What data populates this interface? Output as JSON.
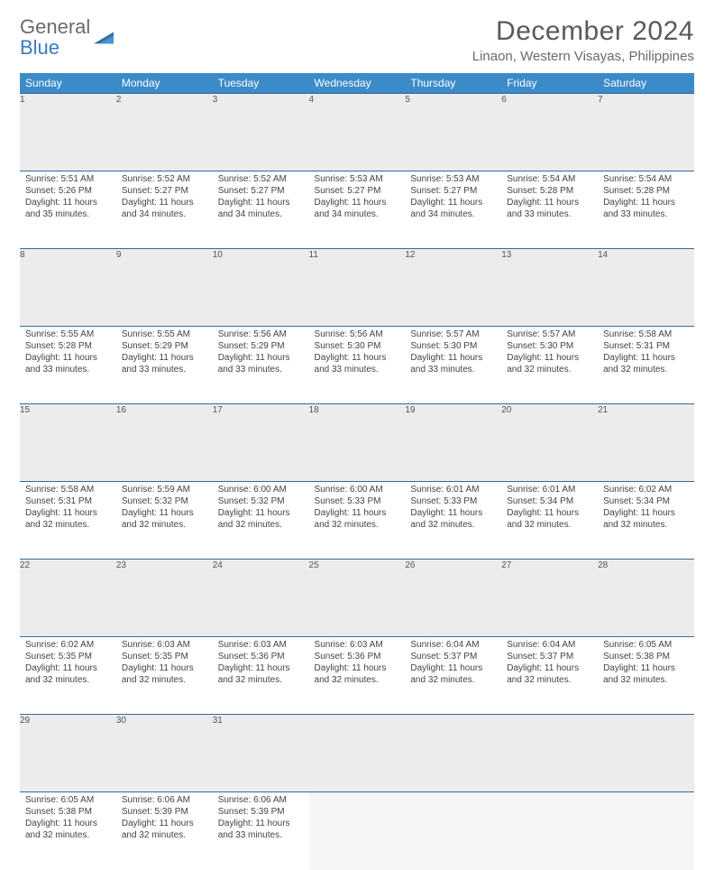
{
  "brand": {
    "line1": "General",
    "line2": "Blue"
  },
  "title": "December 2024",
  "location": "Linaon, Western Visayas, Philippines",
  "colors": {
    "header_bg": "#3b8bc9",
    "header_text": "#ffffff",
    "row_border": "#35689e",
    "daynum_bg": "#ececec",
    "body_text": "#444444",
    "title_text": "#5a5a5a",
    "brand_gray": "#6b6b6b",
    "brand_blue": "#3b7bbf"
  },
  "typography": {
    "title_fontsize": 30,
    "location_fontsize": 15,
    "dayhead_fontsize": 12,
    "cell_fontsize": 10
  },
  "day_headers": [
    "Sunday",
    "Monday",
    "Tuesday",
    "Wednesday",
    "Thursday",
    "Friday",
    "Saturday"
  ],
  "weeks": [
    [
      {
        "n": "1",
        "sr": "5:51 AM",
        "ss": "5:26 PM",
        "dl": "11 hours and 35 minutes."
      },
      {
        "n": "2",
        "sr": "5:52 AM",
        "ss": "5:27 PM",
        "dl": "11 hours and 34 minutes."
      },
      {
        "n": "3",
        "sr": "5:52 AM",
        "ss": "5:27 PM",
        "dl": "11 hours and 34 minutes."
      },
      {
        "n": "4",
        "sr": "5:53 AM",
        "ss": "5:27 PM",
        "dl": "11 hours and 34 minutes."
      },
      {
        "n": "5",
        "sr": "5:53 AM",
        "ss": "5:27 PM",
        "dl": "11 hours and 34 minutes."
      },
      {
        "n": "6",
        "sr": "5:54 AM",
        "ss": "5:28 PM",
        "dl": "11 hours and 33 minutes."
      },
      {
        "n": "7",
        "sr": "5:54 AM",
        "ss": "5:28 PM",
        "dl": "11 hours and 33 minutes."
      }
    ],
    [
      {
        "n": "8",
        "sr": "5:55 AM",
        "ss": "5:28 PM",
        "dl": "11 hours and 33 minutes."
      },
      {
        "n": "9",
        "sr": "5:55 AM",
        "ss": "5:29 PM",
        "dl": "11 hours and 33 minutes."
      },
      {
        "n": "10",
        "sr": "5:56 AM",
        "ss": "5:29 PM",
        "dl": "11 hours and 33 minutes."
      },
      {
        "n": "11",
        "sr": "5:56 AM",
        "ss": "5:30 PM",
        "dl": "11 hours and 33 minutes."
      },
      {
        "n": "12",
        "sr": "5:57 AM",
        "ss": "5:30 PM",
        "dl": "11 hours and 33 minutes."
      },
      {
        "n": "13",
        "sr": "5:57 AM",
        "ss": "5:30 PM",
        "dl": "11 hours and 32 minutes."
      },
      {
        "n": "14",
        "sr": "5:58 AM",
        "ss": "5:31 PM",
        "dl": "11 hours and 32 minutes."
      }
    ],
    [
      {
        "n": "15",
        "sr": "5:58 AM",
        "ss": "5:31 PM",
        "dl": "11 hours and 32 minutes."
      },
      {
        "n": "16",
        "sr": "5:59 AM",
        "ss": "5:32 PM",
        "dl": "11 hours and 32 minutes."
      },
      {
        "n": "17",
        "sr": "6:00 AM",
        "ss": "5:32 PM",
        "dl": "11 hours and 32 minutes."
      },
      {
        "n": "18",
        "sr": "6:00 AM",
        "ss": "5:33 PM",
        "dl": "11 hours and 32 minutes."
      },
      {
        "n": "19",
        "sr": "6:01 AM",
        "ss": "5:33 PM",
        "dl": "11 hours and 32 minutes."
      },
      {
        "n": "20",
        "sr": "6:01 AM",
        "ss": "5:34 PM",
        "dl": "11 hours and 32 minutes."
      },
      {
        "n": "21",
        "sr": "6:02 AM",
        "ss": "5:34 PM",
        "dl": "11 hours and 32 minutes."
      }
    ],
    [
      {
        "n": "22",
        "sr": "6:02 AM",
        "ss": "5:35 PM",
        "dl": "11 hours and 32 minutes."
      },
      {
        "n": "23",
        "sr": "6:03 AM",
        "ss": "5:35 PM",
        "dl": "11 hours and 32 minutes."
      },
      {
        "n": "24",
        "sr": "6:03 AM",
        "ss": "5:36 PM",
        "dl": "11 hours and 32 minutes."
      },
      {
        "n": "25",
        "sr": "6:03 AM",
        "ss": "5:36 PM",
        "dl": "11 hours and 32 minutes."
      },
      {
        "n": "26",
        "sr": "6:04 AM",
        "ss": "5:37 PM",
        "dl": "11 hours and 32 minutes."
      },
      {
        "n": "27",
        "sr": "6:04 AM",
        "ss": "5:37 PM",
        "dl": "11 hours and 32 minutes."
      },
      {
        "n": "28",
        "sr": "6:05 AM",
        "ss": "5:38 PM",
        "dl": "11 hours and 32 minutes."
      }
    ],
    [
      {
        "n": "29",
        "sr": "6:05 AM",
        "ss": "5:38 PM",
        "dl": "11 hours and 32 minutes."
      },
      {
        "n": "30",
        "sr": "6:06 AM",
        "ss": "5:39 PM",
        "dl": "11 hours and 32 minutes."
      },
      {
        "n": "31",
        "sr": "6:06 AM",
        "ss": "5:39 PM",
        "dl": "11 hours and 33 minutes."
      },
      null,
      null,
      null,
      null
    ]
  ],
  "labels": {
    "sunrise": "Sunrise:",
    "sunset": "Sunset:",
    "daylight": "Daylight:"
  }
}
